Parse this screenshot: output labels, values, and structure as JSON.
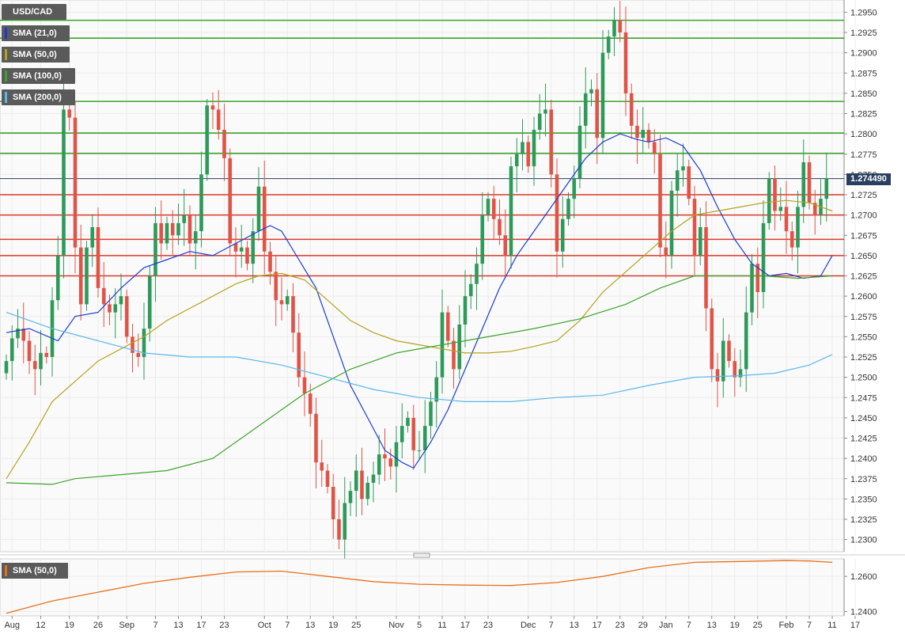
{
  "legend": [
    {
      "label": "USD/CAD",
      "color": ""
    },
    {
      "label": "SMA (21,0)",
      "color": "#1a3bd1"
    },
    {
      "label": "SMA (50,0)",
      "color": "#b4a21c"
    },
    {
      "label": "SMA (100,0)",
      "color": "#3aa42a"
    },
    {
      "label": "SMA (200,0)",
      "color": "#5bb8ea"
    }
  ],
  "last_price": "1.274490",
  "lower_legend": {
    "label": "SMA (50,0)",
    "color": "#e8701c"
  },
  "chart_data": [
    {
      "type": "candlestick",
      "ylim": [
        1.2285,
        1.2965
      ],
      "y_ticks": [
        "1.2950",
        "1.2925",
        "1.2900",
        "1.2875",
        "1.2850",
        "1.2825",
        "1.2800",
        "1.2775",
        "1.2750",
        "1.2725",
        "1.2700",
        "1.2675",
        "1.2650",
        "1.2625",
        "1.2600",
        "1.2575",
        "1.2550",
        "1.2525",
        "1.2500",
        "1.2475",
        "1.2450",
        "1.2425",
        "1.2400",
        "1.2375",
        "1.2350",
        "1.2325",
        "1.2300"
      ],
      "x_ticks": [
        {
          "label": "Aug",
          "i": 1
        },
        {
          "label": "12",
          "i": 6
        },
        {
          "label": "19",
          "i": 11
        },
        {
          "label": "26",
          "i": 16
        },
        {
          "label": "Sep",
          "i": 21
        },
        {
          "label": "7",
          "i": 26
        },
        {
          "label": "13",
          "i": 30
        },
        {
          "label": "17",
          "i": 34
        },
        {
          "label": "23",
          "i": 38
        },
        {
          "label": "Oct",
          "i": 45
        },
        {
          "label": "7",
          "i": 49
        },
        {
          "label": "13",
          "i": 53
        },
        {
          "label": "19",
          "i": 57
        },
        {
          "label": "25",
          "i": 61
        },
        {
          "label": "Nov",
          "i": 68
        },
        {
          "label": "5",
          "i": 72
        },
        {
          "label": "11",
          "i": 76
        },
        {
          "label": "17",
          "i": 80
        },
        {
          "label": "23",
          "i": 84
        },
        {
          "label": "Dec",
          "i": 91
        },
        {
          "label": "7",
          "i": 95
        },
        {
          "label": "13",
          "i": 99
        },
        {
          "label": "17",
          "i": 103
        },
        {
          "label": "23",
          "i": 107
        },
        {
          "label": "29",
          "i": 111
        },
        {
          "label": "Jan",
          "i": 115
        },
        {
          "label": "7",
          "i": 119
        },
        {
          "label": "13",
          "i": 123
        },
        {
          "label": "19",
          "i": 127
        },
        {
          "label": "25",
          "i": 131
        },
        {
          "label": "Feb",
          "i": 136
        },
        {
          "label": "7",
          "i": 140
        },
        {
          "label": "11",
          "i": 144
        },
        {
          "label": "17",
          "i": 148
        }
      ],
      "horizontal_levels": [
        {
          "value": 1.294,
          "color": "#3aa42a"
        },
        {
          "value": 1.2918,
          "color": "#3aa42a"
        },
        {
          "value": 1.284,
          "color": "#3aa42a"
        },
        {
          "value": 1.2801,
          "color": "#3aa42a"
        },
        {
          "value": 1.2776,
          "color": "#3aa42a"
        },
        {
          "value": 1.27449,
          "color": "#2a3f5f"
        },
        {
          "value": 1.2725,
          "color": "#d83a2a"
        },
        {
          "value": 1.27,
          "color": "#d83a2a"
        },
        {
          "value": 1.267,
          "color": "#d83a2a"
        },
        {
          "value": 1.265,
          "color": "#d83a2a"
        },
        {
          "value": 1.2625,
          "color": "#d83a2a"
        }
      ],
      "candles_close": [
        1.252,
        1.2548,
        1.256,
        1.2545,
        1.252,
        1.251,
        1.253,
        1.2525,
        1.2595,
        1.265,
        1.283,
        1.282,
        1.266,
        1.259,
        1.266,
        1.2685,
        1.261,
        1.259,
        1.258,
        1.259,
        1.26,
        1.255,
        1.253,
        1.2525,
        1.256,
        1.2625,
        1.269,
        1.2665,
        1.269,
        1.2675,
        1.269,
        1.27,
        1.2665,
        1.268,
        1.275,
        1.2835,
        1.283,
        1.2805,
        1.277,
        1.2665,
        1.2655,
        1.266,
        1.264,
        1.268,
        1.2735,
        1.2655,
        1.263,
        1.2595,
        1.259,
        1.26,
        1.2555,
        1.25,
        1.248,
        1.2455,
        1.2395,
        1.2385,
        1.2365,
        1.2325,
        1.23,
        1.2345,
        1.236,
        1.2385,
        1.235,
        1.237,
        1.238,
        1.2405,
        1.24,
        1.239,
        1.242,
        1.244,
        1.245,
        1.241,
        1.241,
        1.244,
        1.247,
        1.25,
        1.258,
        1.2545,
        1.251,
        1.2565,
        1.26,
        1.2615,
        1.264,
        1.27,
        1.272,
        1.2695,
        1.2675,
        1.265,
        1.276,
        1.2775,
        1.279,
        1.276,
        1.2805,
        1.2825,
        1.283,
        1.275,
        1.2655,
        1.2695,
        1.272,
        1.2745,
        1.281,
        1.285,
        1.2855,
        1.2795,
        1.29,
        1.292,
        1.294,
        1.2925,
        1.285,
        1.281,
        1.2795,
        1.2805,
        1.279,
        1.2775,
        1.266,
        1.265,
        1.273,
        1.2755,
        1.276,
        1.272,
        1.265,
        1.2685,
        1.2585,
        1.251,
        1.2495,
        1.2545,
        1.252,
        1.25,
        1.251,
        1.258,
        1.264,
        1.2605,
        1.269,
        1.2745,
        1.2705,
        1.271,
        1.268,
        1.266,
        1.271,
        1.2765,
        1.2715,
        1.27,
        1.272,
        1.2745
      ],
      "sma_21": "blue line falling from ~1.2560 to 1.2545 (Aug), rising to 1.2685 (Oct), falling to 1.2390 (Nov), rising to 1.2790 (Jan), falling to 1.2620 and ending 1.2650",
      "series": [
        {
          "name": "SMA (21,0)",
          "values": [
            [
              0,
              1.2555
            ],
            [
              4,
              1.256
            ],
            [
              9,
              1.2545
            ],
            [
              12,
              1.2575
            ],
            [
              16,
              1.258
            ],
            [
              20,
              1.261
            ],
            [
              24,
              1.2635
            ],
            [
              28,
              1.2645
            ],
            [
              32,
              1.2655
            ],
            [
              36,
              1.265
            ],
            [
              40,
              1.2665
            ],
            [
              44,
              1.268
            ],
            [
              46,
              1.2687
            ],
            [
              48,
              1.268
            ],
            [
              51,
              1.2645
            ],
            [
              54,
              1.261
            ],
            [
              57,
              1.255
            ],
            [
              60,
              1.249
            ],
            [
              63,
              1.245
            ],
            [
              66,
              1.241
            ],
            [
              69,
              1.2395
            ],
            [
              71,
              1.2388
            ],
            [
              74,
              1.242
            ],
            [
              77,
              1.246
            ],
            [
              80,
              1.251
            ],
            [
              83,
              1.256
            ],
            [
              86,
              1.261
            ],
            [
              89,
              1.265
            ],
            [
              92,
              1.268
            ],
            [
              95,
              1.271
            ],
            [
              98,
              1.274
            ],
            [
              101,
              1.277
            ],
            [
              104,
              1.279
            ],
            [
              107,
              1.28
            ],
            [
              110,
              1.2793
            ],
            [
              112,
              1.279
            ],
            [
              115,
              1.2795
            ],
            [
              118,
              1.2785
            ],
            [
              121,
              1.2755
            ],
            [
              124,
              1.271
            ],
            [
              127,
              1.267
            ],
            [
              130,
              1.264
            ],
            [
              133,
              1.2625
            ],
            [
              136,
              1.2628
            ],
            [
              139,
              1.2622
            ],
            [
              142,
              1.2625
            ],
            [
              144,
              1.265
            ]
          ]
        },
        {
          "name": "SMA (50,0)",
          "values": [
            [
              0,
              1.2375
            ],
            [
              4,
              1.242
            ],
            [
              8,
              1.247
            ],
            [
              12,
              1.2495
            ],
            [
              16,
              1.252
            ],
            [
              20,
              1.2535
            ],
            [
              24,
              1.255
            ],
            [
              28,
              1.257
            ],
            [
              32,
              1.2585
            ],
            [
              36,
              1.26
            ],
            [
              40,
              1.2615
            ],
            [
              44,
              1.2625
            ],
            [
              48,
              1.2628
            ],
            [
              52,
              1.262
            ],
            [
              56,
              1.2595
            ],
            [
              60,
              1.257
            ],
            [
              64,
              1.2555
            ],
            [
              68,
              1.2545
            ],
            [
              72,
              1.254
            ],
            [
              76,
              1.2535
            ],
            [
              80,
              1.253
            ],
            [
              84,
              1.253
            ],
            [
              88,
              1.2532
            ],
            [
              92,
              1.2538
            ],
            [
              96,
              1.2545
            ],
            [
              100,
              1.257
            ],
            [
              104,
              1.2605
            ],
            [
              108,
              1.263
            ],
            [
              112,
              1.2655
            ],
            [
              116,
              1.268
            ],
            [
              120,
              1.27
            ],
            [
              124,
              1.2705
            ],
            [
              128,
              1.271
            ],
            [
              132,
              1.2715
            ],
            [
              136,
              1.2718
            ],
            [
              140,
              1.2715
            ],
            [
              144,
              1.2705
            ]
          ]
        },
        {
          "name": "SMA (100,0)",
          "values": [
            [
              0,
              1.237
            ],
            [
              8,
              1.2368
            ],
            [
              12,
              1.2375
            ],
            [
              20,
              1.238
            ],
            [
              28,
              1.2385
            ],
            [
              36,
              1.24
            ],
            [
              44,
              1.244
            ],
            [
              52,
              1.248
            ],
            [
              60,
              1.251
            ],
            [
              68,
              1.253
            ],
            [
              76,
              1.254
            ],
            [
              84,
              1.255
            ],
            [
              92,
              1.256
            ],
            [
              100,
              1.2572
            ],
            [
              108,
              1.259
            ],
            [
              114,
              1.261
            ],
            [
              120,
              1.2625
            ],
            [
              126,
              1.2625
            ],
            [
              132,
              1.2625
            ],
            [
              138,
              1.2622
            ],
            [
              144,
              1.2625
            ]
          ]
        },
        {
          "name": "SMA (200,0)",
          "values": [
            [
              0,
              1.258
            ],
            [
              8,
              1.256
            ],
            [
              16,
              1.2545
            ],
            [
              24,
              1.253
            ],
            [
              32,
              1.2525
            ],
            [
              40,
              1.2525
            ],
            [
              48,
              1.2515
            ],
            [
              56,
              1.25
            ],
            [
              64,
              1.2485
            ],
            [
              72,
              1.2475
            ],
            [
              80,
              1.247
            ],
            [
              88,
              1.247
            ],
            [
              96,
              1.2475
            ],
            [
              104,
              1.2478
            ],
            [
              112,
              1.249
            ],
            [
              120,
              1.25
            ],
            [
              128,
              1.2502
            ],
            [
              134,
              1.2505
            ],
            [
              140,
              1.2515
            ],
            [
              144,
              1.2528
            ]
          ]
        }
      ]
    },
    {
      "type": "line",
      "ylim": [
        1.2375,
        1.27
      ],
      "y_ticks": [
        "1.2600",
        "1.2400"
      ],
      "series": [
        {
          "name": "SMA (50,0)",
          "values": [
            [
              0,
              1.239
            ],
            [
              8,
              1.246
            ],
            [
              16,
              1.251
            ],
            [
              24,
              1.256
            ],
            [
              32,
              1.2595
            ],
            [
              40,
              1.2625
            ],
            [
              48,
              1.263
            ],
            [
              56,
              1.26
            ],
            [
              64,
              1.257
            ],
            [
              72,
              1.2555
            ],
            [
              80,
              1.255
            ],
            [
              88,
              1.2548
            ],
            [
              96,
              1.2565
            ],
            [
              104,
              1.26
            ],
            [
              112,
              1.265
            ],
            [
              120,
              1.268
            ],
            [
              128,
              1.2685
            ],
            [
              136,
              1.269
            ],
            [
              140,
              1.2688
            ],
            [
              144,
              1.268
            ]
          ]
        }
      ]
    }
  ]
}
